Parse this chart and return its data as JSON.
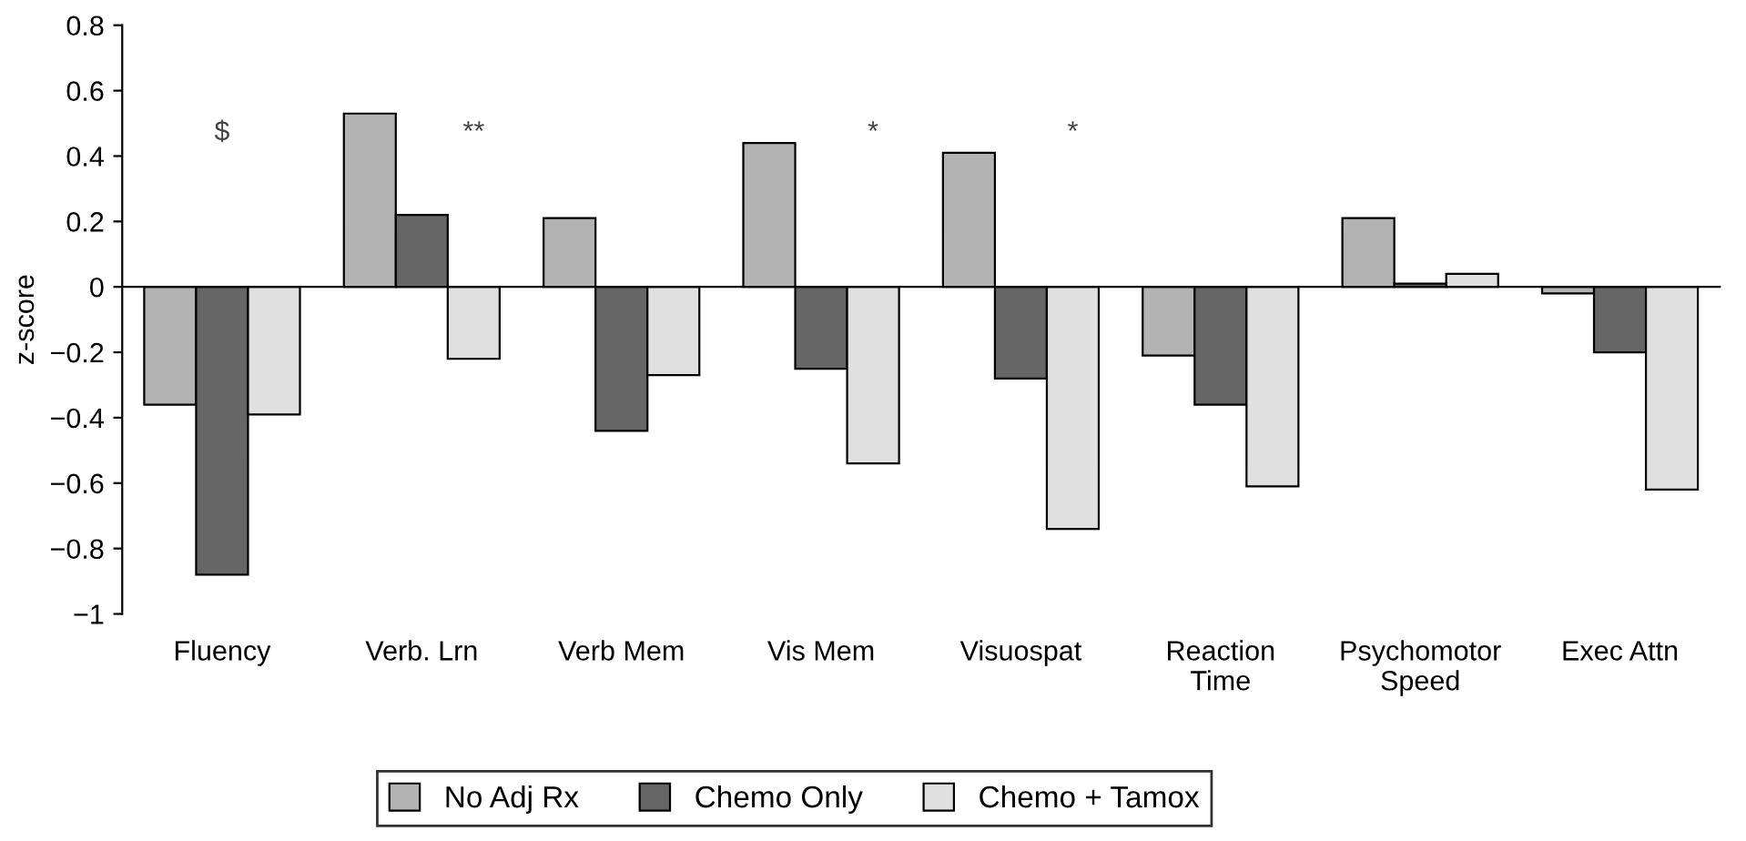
{
  "chart_data": {
    "type": "bar",
    "ylabel": "z-score",
    "categories": [
      "Fluency",
      "Verb. Lrn",
      "Verb Mem",
      "Vis Mem",
      "Visuospat",
      "Reaction\nTime",
      "Psychomotor\nSpeed",
      "Exec Attn"
    ],
    "series": [
      {
        "name": "No Adj Rx",
        "color": "#b3b3b3",
        "values": [
          -0.36,
          0.53,
          0.21,
          0.44,
          0.41,
          -0.21,
          0.21,
          -0.02
        ]
      },
      {
        "name": "Chemo Only",
        "color": "#666666",
        "values": [
          -0.88,
          0.22,
          -0.44,
          -0.25,
          -0.28,
          -0.36,
          0.01,
          -0.2
        ]
      },
      {
        "name": "Chemo + Tamox",
        "color": "#e0e0e0",
        "values": [
          -0.39,
          -0.22,
          -0.27,
          -0.54,
          -0.74,
          -0.61,
          0.04,
          -0.62
        ]
      }
    ],
    "ylim": [
      -1,
      0.8
    ],
    "yticks": [
      {
        "value": -1,
        "label": "−1"
      },
      {
        "value": -0.8,
        "label": "−0.8"
      },
      {
        "value": -0.6,
        "label": "−0.6"
      },
      {
        "value": -0.4,
        "label": "−0.4"
      },
      {
        "value": -0.2,
        "label": "−0.2"
      },
      0,
      0.2,
      0.4,
      0.6,
      0.8
    ],
    "annotations": [
      "$",
      "**",
      "*",
      "*"
    ],
    "legend": "bottom"
  }
}
